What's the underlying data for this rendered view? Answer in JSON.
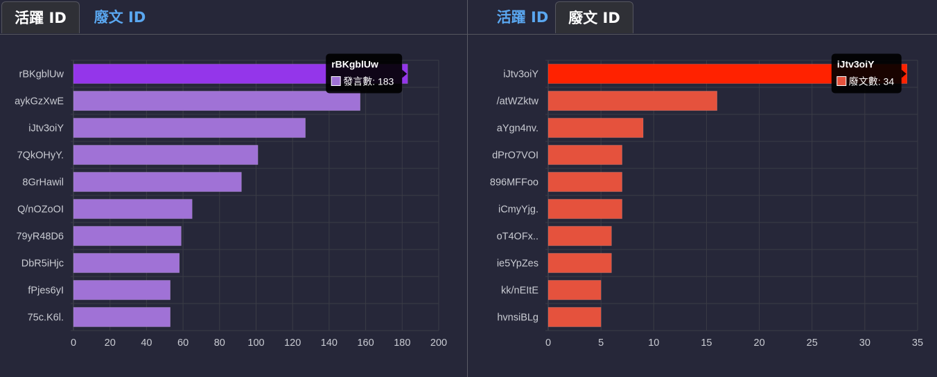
{
  "left_panel": {
    "tabs": [
      {
        "label": "活躍 ID",
        "active": true
      },
      {
        "label": "廢文 ID",
        "active": false
      }
    ]
  },
  "right_panel": {
    "tabs": [
      {
        "label": "活躍 ID",
        "active": false
      },
      {
        "label": "廢文 ID",
        "active": true
      }
    ]
  },
  "colors": {
    "left_bar": "#a072d6",
    "left_bar_highlight": "#9436ea",
    "right_bar": "#e5523d",
    "right_bar_highlight": "#ff2200"
  },
  "chart_data": [
    {
      "type": "bar",
      "orientation": "horizontal",
      "categories": [
        "rBKgblUw",
        "aykGzXwE",
        "iJtv3oiY",
        "7QkOHyY.",
        "8GrHawil",
        "Q/nOZoOI",
        "79yR48D6",
        "DbR5iHjc",
        "fPjes6yI",
        "75c.K6l."
      ],
      "series": [
        {
          "name": "發言數",
          "values": [
            183,
            157,
            127,
            101,
            92,
            65,
            59,
            58,
            53,
            53
          ]
        }
      ],
      "xlim": [
        0,
        200
      ],
      "xticks": [
        0,
        20,
        40,
        60,
        80,
        100,
        120,
        140,
        160,
        180,
        200
      ],
      "grid": true,
      "highlight_index": 0,
      "tooltip": {
        "title": "rBKgblUw",
        "label": "發言數",
        "value": 183
      }
    },
    {
      "type": "bar",
      "orientation": "horizontal",
      "categories": [
        "iJtv3oiY",
        "/atWZktw",
        "aYgn4nv.",
        "dPrO7VOI",
        "896MFFoo",
        "iCmyYjg.",
        "oT4OFx..",
        "ie5YpZes",
        "kk/nEItE",
        "hvnsiBLg"
      ],
      "series": [
        {
          "name": "廢文數",
          "values": [
            34,
            16,
            9,
            7,
            7,
            7,
            6,
            6,
            5,
            5
          ]
        }
      ],
      "xlim": [
        0,
        35
      ],
      "xticks": [
        0,
        5,
        10,
        15,
        20,
        25,
        30,
        35
      ],
      "grid": true,
      "highlight_index": 0,
      "tooltip": {
        "title": "iJtv3oiY",
        "label": "廢文數",
        "value": 34
      }
    }
  ]
}
